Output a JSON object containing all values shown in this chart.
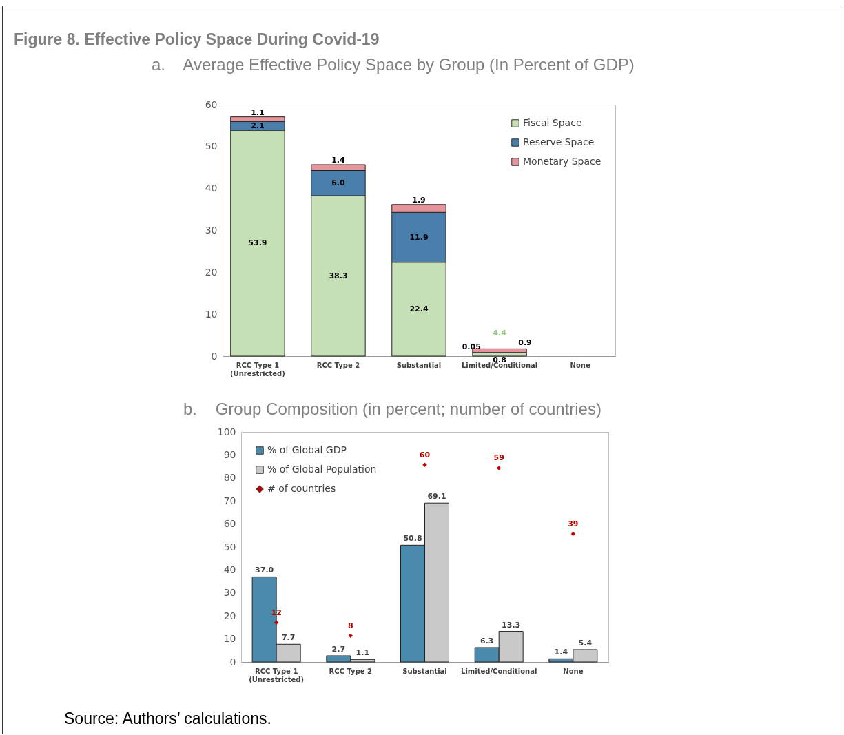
{
  "chart_data": [
    {
      "type": "bar",
      "title": "Figure 8. Effective Policy Space During Covid-19",
      "subtitle": "a.    Average Effective Policy Space by Group (In Percent of GDP)",
      "stacked": true,
      "legend": "top right",
      "categories": [
        "RCC Type 1 (Unrestricted)",
        "RCC Type 2",
        "Substantial",
        "Limited/Conditional",
        "None"
      ],
      "ylim": [
        0,
        60
      ],
      "yticks": [
        0,
        10,
        20,
        30,
        40,
        50,
        60
      ],
      "series": [
        {
          "name": "Fiscal Space",
          "color": "#c5e0b4",
          "values": [
            53.9,
            38.3,
            22.4,
            0.8,
            0
          ],
          "value_labels": [
            "53.9",
            "38.3",
            "22.4",
            "0.8",
            null
          ]
        },
        {
          "name": "Reserve Space",
          "color": "#4a7eab",
          "values": [
            2.1,
            6.0,
            11.9,
            0.05,
            0
          ],
          "value_labels": [
            "2.1",
            "6.0",
            "11.9",
            "0.05",
            null
          ]
        },
        {
          "name": "Monetary Space",
          "color": "#e6949a",
          "values": [
            1.1,
            1.4,
            1.9,
            0.9,
            0
          ],
          "value_labels": [
            "1.1",
            "1.4",
            "1.9",
            "0.9",
            null
          ]
        }
      ],
      "annotations": [
        "4.4"
      ]
    },
    {
      "type": "bar",
      "title": "b.    Group Composition (in percent; number of countries)",
      "legend": "top left",
      "categories": [
        "RCC Type 1 (Unrestricted)",
        "RCC Type 2",
        "Substantial",
        "Limited/Conditional",
        "None"
      ],
      "ylim": [
        0,
        100
      ],
      "yticks": [
        0,
        10,
        20,
        30,
        40,
        50,
        60,
        70,
        80,
        90,
        100
      ],
      "y2lim": [
        0,
        70
      ],
      "series": [
        {
          "name": "% of Global GDP",
          "color": "#4a8aad",
          "values": [
            37.0,
            2.7,
            50.8,
            6.3,
            1.4
          ],
          "value_labels": [
            "37.0",
            "2.7",
            "50.8",
            "6.3",
            "1.4"
          ]
        },
        {
          "name": "% of Global Population",
          "color": "#c8c8c8",
          "values": [
            7.7,
            1.1,
            69.1,
            13.3,
            5.4
          ],
          "value_labels": [
            "7.7",
            "1.1",
            "69.1",
            "13.3",
            "5.4"
          ]
        },
        {
          "name": "# of countries",
          "type": "scatter",
          "axis": "y2",
          "marker": "diamond",
          "color": "#c00000",
          "values": [
            12,
            8,
            60,
            59,
            39
          ],
          "value_labels": [
            "12",
            "8",
            "60",
            "59",
            "39"
          ]
        }
      ],
      "annotations": [
        "Source: Authors’ calculations."
      ]
    }
  ]
}
